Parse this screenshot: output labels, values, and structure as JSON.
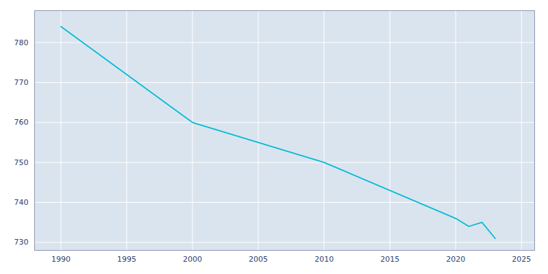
{
  "chart_data": {
    "type": "line",
    "x": [
      1990,
      2000,
      2010,
      2020,
      2021,
      2022,
      2023
    ],
    "values": [
      784,
      760,
      750,
      736,
      734,
      735,
      731
    ],
    "color": "#00bcd4",
    "xlim": [
      1988,
      2026
    ],
    "ylim": [
      728,
      788
    ],
    "xticks": [
      1990,
      1995,
      2000,
      2005,
      2010,
      2015,
      2020,
      2025
    ],
    "yticks": [
      730,
      740,
      750,
      760,
      770,
      780
    ],
    "grid": true
  }
}
